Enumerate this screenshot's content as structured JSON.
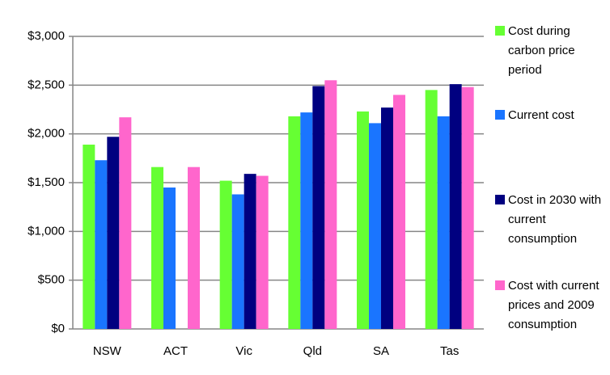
{
  "chart_data": {
    "type": "bar",
    "categories": [
      "NSW",
      "ACT",
      "Vic",
      "Qld",
      "SA",
      "Tas"
    ],
    "series": [
      {
        "name": "Cost during carbon price period",
        "color": "#66ff33",
        "values": [
          1890,
          1660,
          1520,
          2180,
          2230,
          2450
        ]
      },
      {
        "name": "Current cost",
        "color": "#1a75ff",
        "values": [
          1730,
          1450,
          1380,
          2220,
          2110,
          2180
        ]
      },
      {
        "name": "Cost in 2030 with current consumption",
        "color": "#000080",
        "values": [
          1970,
          null,
          1590,
          2490,
          2270,
          2510
        ]
      },
      {
        "name": "Cost with current prices and 2009 consumption",
        "color": "#ff66cc",
        "values": [
          2170,
          1660,
          1570,
          2550,
          2400,
          2480
        ]
      }
    ],
    "ylim": [
      0,
      3000
    ],
    "yticks": [
      {
        "value": 0,
        "label": "$0"
      },
      {
        "value": 500,
        "label": "$500"
      },
      {
        "value": 1000,
        "label": "$1,000"
      },
      {
        "value": 1500,
        "label": "$1,500"
      },
      {
        "value": 2000,
        "label": "$2,000"
      },
      {
        "value": 2500,
        "label": "$2,500"
      },
      {
        "value": 3000,
        "label": "$3,000"
      }
    ],
    "grid": true,
    "legend": "right"
  }
}
